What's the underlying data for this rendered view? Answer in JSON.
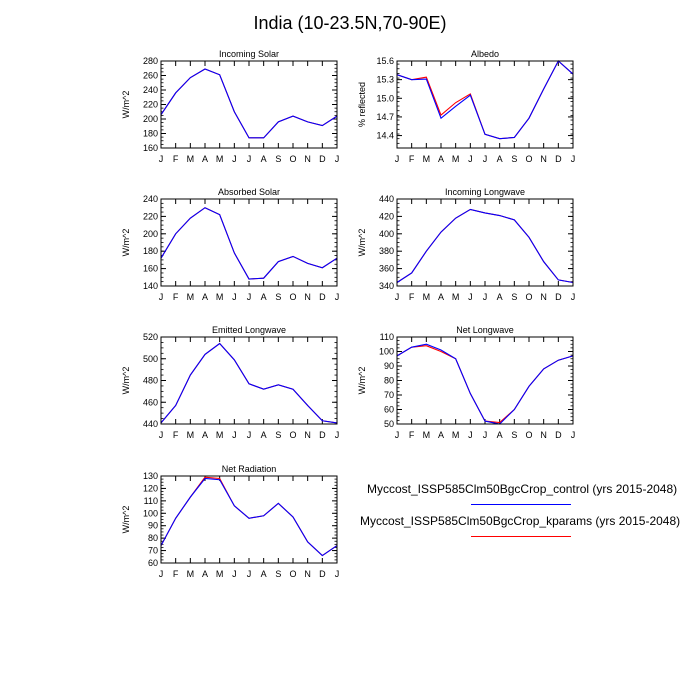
{
  "figure_title": "India (10-23.5N,70-90E)",
  "colors": {
    "control": "#0000ff",
    "kparams": "#ff0000"
  },
  "legend": {
    "control_label": "Myccost_ISSP585Clm50BgcCrop_control (yrs 2015-2048)",
    "kparams_label": "Myccost_ISSP585Clm50BgcCrop_kparams (yrs 2015-2048)"
  },
  "chart_data": [
    {
      "type": "line",
      "title": "Incoming Solar",
      "ylabel": "W/m^2",
      "x": [
        "J",
        "F",
        "M",
        "A",
        "M",
        "J",
        "J",
        "A",
        "S",
        "O",
        "N",
        "D",
        "J"
      ],
      "ylim": [
        160,
        280
      ],
      "yticks": [
        160,
        180,
        200,
        220,
        240,
        260,
        280
      ],
      "series": [
        {
          "key": "control",
          "values": [
            206,
            236,
            257,
            269,
            261,
            210,
            174,
            174,
            196,
            204,
            196,
            191,
            204
          ]
        },
        {
          "key": "kparams",
          "values": [
            206,
            236,
            257,
            269,
            261,
            210,
            174,
            174,
            196,
            204,
            196,
            191,
            204
          ]
        }
      ]
    },
    {
      "type": "line",
      "title": "Albedo",
      "ylabel": "% reflected",
      "x": [
        "J",
        "F",
        "M",
        "A",
        "M",
        "J",
        "J",
        "A",
        "S",
        "O",
        "N",
        "D",
        "J"
      ],
      "ylim": [
        14.2,
        15.6
      ],
      "yticks": [
        14.4,
        14.7,
        15.0,
        15.3,
        15.6
      ],
      "tick_format": "1",
      "series": [
        {
          "key": "control",
          "values": [
            15.38,
            15.3,
            15.31,
            14.68,
            14.87,
            15.05,
            14.42,
            14.35,
            14.37,
            14.68,
            15.15,
            15.6,
            15.39
          ]
        },
        {
          "key": "kparams",
          "values": [
            15.38,
            15.3,
            15.34,
            14.73,
            14.93,
            15.07,
            14.42,
            14.35,
            14.37,
            14.68,
            15.15,
            15.6,
            15.39
          ]
        }
      ]
    },
    {
      "type": "line",
      "title": "Absorbed Solar",
      "ylabel": "W/m^2",
      "x": [
        "J",
        "F",
        "M",
        "A",
        "M",
        "J",
        "J",
        "A",
        "S",
        "O",
        "N",
        "D",
        "J"
      ],
      "ylim": [
        140,
        240
      ],
      "yticks": [
        140,
        160,
        180,
        200,
        220,
        240
      ],
      "series": [
        {
          "key": "control",
          "values": [
            172,
            200,
            218,
            230,
            222,
            178,
            148,
            149,
            168,
            174,
            166,
            161,
            172
          ]
        },
        {
          "key": "kparams",
          "values": [
            172,
            200,
            218,
            230,
            222,
            178,
            148,
            149,
            168,
            174,
            166,
            161,
            172
          ]
        }
      ]
    },
    {
      "type": "line",
      "title": "Incoming Longwave",
      "ylabel": "W/m^2",
      "x": [
        "J",
        "F",
        "M",
        "A",
        "M",
        "J",
        "J",
        "A",
        "S",
        "O",
        "N",
        "D",
        "J"
      ],
      "ylim": [
        340,
        440
      ],
      "yticks": [
        340,
        360,
        380,
        400,
        420,
        440
      ],
      "series": [
        {
          "key": "control",
          "values": [
            344,
            355,
            380,
            402,
            418,
            428,
            424,
            421,
            416,
            396,
            368,
            347,
            344
          ]
        },
        {
          "key": "kparams",
          "values": [
            344,
            355,
            380,
            402,
            418,
            428,
            424,
            421,
            416,
            396,
            368,
            347,
            344
          ]
        }
      ]
    },
    {
      "type": "line",
      "title": "Emitted Longwave",
      "ylabel": "W/m^2",
      "x": [
        "J",
        "F",
        "M",
        "A",
        "M",
        "J",
        "J",
        "A",
        "S",
        "O",
        "N",
        "D",
        "J"
      ],
      "ylim": [
        440,
        520
      ],
      "yticks": [
        440,
        460,
        480,
        500,
        520
      ],
      "series": [
        {
          "key": "control",
          "values": [
            441,
            457,
            485,
            504,
            514,
            499,
            477,
            472,
            476,
            472,
            457,
            443,
            441
          ]
        },
        {
          "key": "kparams",
          "values": [
            441,
            457,
            485,
            504,
            514,
            499,
            477,
            472,
            476,
            472,
            457,
            443,
            441
          ]
        }
      ]
    },
    {
      "type": "line",
      "title": "Net Longwave",
      "ylabel": "W/m^2",
      "x": [
        "J",
        "F",
        "M",
        "A",
        "M",
        "J",
        "J",
        "A",
        "S",
        "O",
        "N",
        "D",
        "J"
      ],
      "ylim": [
        50,
        110
      ],
      "yticks": [
        50,
        60,
        70,
        80,
        90,
        100,
        110
      ],
      "series": [
        {
          "key": "control",
          "values": [
            97,
            103,
            105,
            101,
            95,
            71,
            52,
            50,
            60,
            76,
            88,
            94,
            97
          ]
        },
        {
          "key": "kparams",
          "values": [
            97,
            103,
            104,
            100,
            95,
            71,
            52,
            51,
            60,
            76,
            88,
            94,
            97
          ]
        }
      ]
    },
    {
      "type": "line",
      "title": "Net Radiation",
      "ylabel": "W/m^2",
      "x": [
        "J",
        "F",
        "M",
        "A",
        "M",
        "J",
        "J",
        "A",
        "S",
        "O",
        "N",
        "D",
        "J"
      ],
      "ylim": [
        60,
        130
      ],
      "yticks": [
        60,
        70,
        80,
        90,
        100,
        110,
        120,
        130
      ],
      "series": [
        {
          "key": "control",
          "values": [
            74,
            96,
            113,
            128,
            127,
            106,
            96,
            98,
            108,
            97,
            77,
            66,
            74
          ]
        },
        {
          "key": "kparams",
          "values": [
            74,
            96,
            113,
            129,
            128,
            106,
            96,
            98,
            108,
            97,
            77,
            66,
            74
          ]
        }
      ]
    }
  ]
}
